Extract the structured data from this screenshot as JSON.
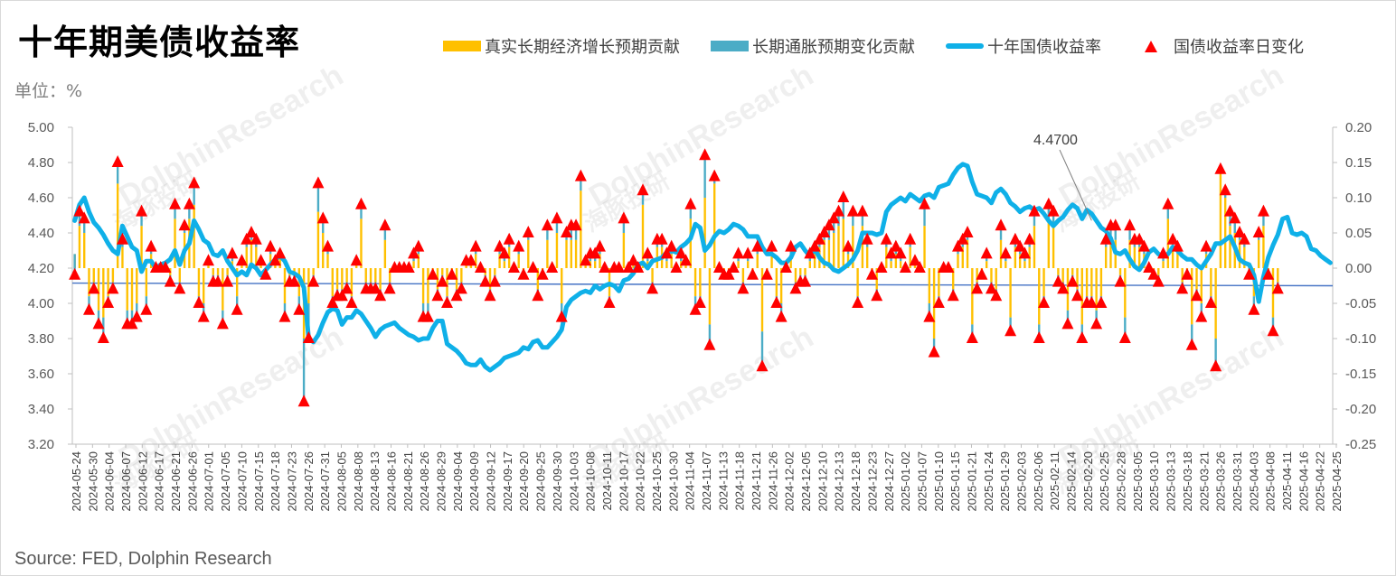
{
  "title": "十年期美债收益率",
  "unit_label": "单位：%",
  "source": "Source: FED, Dolphin Research",
  "legend": [
    {
      "label": "真实长期经济增长预期贡献",
      "kind": "bar",
      "color": "#FFC000"
    },
    {
      "label": "长期通胀预期变化贡献",
      "kind": "bar",
      "color": "#4BACC6"
    },
    {
      "label": "十年国债收益率",
      "kind": "line",
      "color": "#0FB0E8"
    },
    {
      "label": "国债收益率日变化",
      "kind": "triangle",
      "color": "#FF0000"
    }
  ],
  "watermarks": [
    "DolphinResearch",
    "海豚投研"
  ],
  "chart_data": {
    "type": "line",
    "annotation": "4.4700",
    "left_axis": {
      "min": 3.2,
      "max": 5.0,
      "ticks": [
        "3.20",
        "3.40",
        "3.60",
        "3.80",
        "4.00",
        "4.20",
        "4.40",
        "4.60",
        "4.80",
        "5.00"
      ]
    },
    "right_axis": {
      "min": -0.25,
      "max": 0.2,
      "ticks": [
        "-0.25",
        "-0.20",
        "-0.15",
        "-0.10",
        "-0.05",
        "0.00",
        "0.05",
        "0.10",
        "0.15",
        "0.20"
      ]
    },
    "x_tick_labels": [
      "2024-05-24",
      "2024-05-30",
      "2024-06-04",
      "2024-06-07",
      "2024-06-12",
      "2024-06-17",
      "2024-06-21",
      "2024-06-26",
      "2024-07-01",
      "2024-07-05",
      "2024-07-10",
      "2024-07-15",
      "2024-07-18",
      "2024-07-23",
      "2024-07-26",
      "2024-07-31",
      "2024-08-05",
      "2024-08-08",
      "2024-08-13",
      "2024-08-16",
      "2024-08-21",
      "2024-08-26",
      "2024-08-29",
      "2024-09-04",
      "2024-09-09",
      "2024-09-12",
      "2024-09-17",
      "2024-09-20",
      "2024-09-25",
      "2024-09-30",
      "2024-10-03",
      "2024-10-08",
      "2024-10-11",
      "2024-10-17",
      "2024-10-22",
      "2024-10-25",
      "2024-10-30",
      "2024-11-04",
      "2024-11-07",
      "2024-11-13",
      "2024-11-18",
      "2024-11-21",
      "2024-11-26",
      "2024-12-02",
      "2024-12-05",
      "2024-12-10",
      "2024-12-13",
      "2024-12-18",
      "2024-12-23",
      "2024-12-27",
      "2025-01-02",
      "2025-01-07",
      "2025-01-10",
      "2025-01-15",
      "2025-01-21",
      "2025-01-24",
      "2025-01-29",
      "2025-02-03",
      "2025-02-06",
      "2025-02-11",
      "2025-02-14",
      "2025-02-20",
      "2025-02-25",
      "2025-02-28",
      "2025-03-05",
      "2025-03-10",
      "2025-03-13",
      "2025-03-18",
      "2025-03-21",
      "2025-03-26",
      "2025-03-31",
      "2025-04-03",
      "2025-04-08",
      "2025-04-11",
      "2025-04-16",
      "2025-04-22",
      "2025-04-25"
    ],
    "series": [
      {
        "name": "十年国债收益率",
        "axis": "left",
        "values": [
          4.47,
          4.56,
          4.6,
          4.52,
          4.46,
          4.43,
          4.39,
          4.34,
          4.3,
          4.28,
          4.44,
          4.38,
          4.32,
          4.3,
          4.18,
          4.24,
          4.24,
          4.2,
          4.22,
          4.23,
          4.25,
          4.3,
          4.22,
          4.3,
          4.34,
          4.47,
          4.42,
          4.36,
          4.34,
          4.28,
          4.27,
          4.3,
          4.24,
          4.2,
          4.16,
          4.18,
          4.16,
          4.22,
          4.2,
          4.16,
          4.19,
          4.22,
          4.25,
          4.27,
          4.24,
          4.18,
          4.17,
          4.15,
          4.09,
          3.8,
          3.78,
          3.82,
          3.89,
          3.95,
          3.97,
          3.96,
          3.88,
          3.92,
          3.92,
          3.96,
          3.94,
          3.9,
          3.86,
          3.81,
          3.85,
          3.87,
          3.88,
          3.89,
          3.86,
          3.84,
          3.82,
          3.81,
          3.79,
          3.8,
          3.8,
          3.86,
          3.9,
          3.9,
          3.77,
          3.75,
          3.73,
          3.7,
          3.66,
          3.65,
          3.65,
          3.68,
          3.64,
          3.62,
          3.64,
          3.66,
          3.69,
          3.7,
          3.71,
          3.72,
          3.75,
          3.74,
          3.78,
          3.79,
          3.75,
          3.75,
          3.78,
          3.81,
          3.85,
          3.98,
          4.02,
          4.04,
          4.06,
          4.07,
          4.06,
          4.1,
          4.08,
          4.1,
          4.11,
          4.1,
          4.07,
          4.13,
          4.14,
          4.17,
          4.22,
          4.23,
          4.2,
          4.24,
          4.25,
          4.26,
          4.29,
          4.3,
          4.29,
          4.32,
          4.34,
          4.37,
          4.45,
          4.43,
          4.3,
          4.33,
          4.38,
          4.41,
          4.4,
          4.42,
          4.45,
          4.44,
          4.42,
          4.38,
          4.38,
          4.38,
          4.32,
          4.28,
          4.28,
          4.26,
          4.23,
          4.23,
          4.26,
          4.32,
          4.34,
          4.3,
          4.27,
          4.31,
          4.26,
          4.23,
          4.22,
          4.19,
          4.18,
          4.2,
          4.22,
          4.25,
          4.3,
          4.4,
          4.4,
          4.4,
          4.39,
          4.4,
          4.52,
          4.56,
          4.58,
          4.6,
          4.58,
          4.62,
          4.6,
          4.58,
          4.61,
          4.62,
          4.6,
          4.66,
          4.67,
          4.68,
          4.73,
          4.77,
          4.79,
          4.78,
          4.69,
          4.62,
          4.61,
          4.6,
          4.57,
          4.63,
          4.65,
          4.62,
          4.57,
          4.55,
          4.52,
          4.54,
          4.55,
          4.53,
          4.54,
          4.51,
          4.47,
          4.44,
          4.47,
          4.49,
          4.53,
          4.56,
          4.54,
          4.48,
          4.53,
          4.51,
          4.47,
          4.43,
          4.41,
          4.37,
          4.29,
          4.28,
          4.3,
          4.25,
          4.21,
          4.19,
          4.23,
          4.29,
          4.31,
          4.28,
          4.27,
          4.28,
          4.32,
          4.3,
          4.27,
          4.25,
          4.25,
          4.22,
          4.2,
          4.24,
          4.28,
          4.34,
          4.34,
          4.36,
          4.38,
          4.32,
          4.25,
          4.23,
          4.22,
          4.16,
          4.01,
          4.15,
          4.26,
          4.33,
          4.39,
          4.48,
          4.49,
          4.4,
          4.39,
          4.4,
          4.38,
          4.31,
          4.3,
          4.27,
          4.25,
          4.23
        ]
      },
      {
        "name": "国债收益率日变化",
        "axis": "right",
        "values": [
          -0.01,
          0.08,
          0.07,
          -0.06,
          -0.03,
          -0.08,
          -0.1,
          -0.05,
          -0.03,
          0.15,
          0.04,
          -0.08,
          -0.08,
          -0.07,
          0.08,
          -0.06,
          0.03,
          0.0,
          0.0,
          0.0,
          -0.02,
          0.09,
          -0.03,
          0.06,
          0.09,
          0.12,
          -0.05,
          -0.07,
          0.01,
          -0.02,
          -0.02,
          -0.08,
          -0.02,
          0.02,
          -0.06,
          0.01,
          0.04,
          0.05,
          0.04,
          0.01,
          -0.01,
          0.03,
          0.01,
          0.02,
          -0.07,
          -0.02,
          -0.02,
          -0.06,
          -0.19,
          -0.1,
          -0.02,
          0.12,
          0.07,
          0.03,
          -0.05,
          -0.04,
          -0.04,
          -0.03,
          -0.05,
          0.01,
          0.09,
          -0.03,
          -0.03,
          -0.03,
          -0.04,
          0.06,
          -0.03,
          0.0,
          0.0,
          0.0,
          0.0,
          0.02,
          0.03,
          -0.07,
          -0.07,
          -0.01,
          -0.04,
          -0.02,
          -0.05,
          -0.01,
          -0.04,
          -0.03,
          0.01,
          0.01,
          0.03,
          0.0,
          -0.02,
          -0.04,
          -0.02,
          0.03,
          0.02,
          0.04,
          0.0,
          0.03,
          -0.01,
          0.05,
          0.0,
          -0.04,
          -0.01,
          0.06,
          0.0,
          0.07,
          -0.07,
          0.05,
          0.06,
          0.06,
          0.13,
          0.01,
          0.02,
          0.02,
          0.03,
          0.0,
          -0.05,
          0.0,
          0.0,
          0.07,
          0.0,
          0.01,
          0.0,
          0.11,
          0.02,
          -0.03,
          0.04,
          0.04,
          0.02,
          0.03,
          0.0,
          0.02,
          0.01,
          0.09,
          -0.06,
          -0.05,
          0.16,
          -0.11,
          0.13,
          0.0,
          -0.01,
          -0.01,
          0.0,
          0.02,
          -0.03,
          0.02,
          -0.01,
          0.03,
          -0.14,
          -0.01,
          0.03,
          -0.05,
          -0.07,
          0.0,
          0.03,
          -0.03,
          -0.02,
          -0.02,
          0.02,
          0.03,
          0.04,
          0.05,
          0.06,
          0.07,
          0.08,
          0.1,
          0.03,
          0.08,
          -0.05,
          0.08,
          0.04,
          -0.01,
          -0.04,
          0.0,
          0.04,
          0.02,
          0.03,
          0.02,
          0.0,
          0.04,
          0.01,
          0.0,
          0.09,
          -0.07,
          -0.12,
          -0.05,
          0.0,
          0.0,
          -0.04,
          0.03,
          0.04,
          0.05,
          -0.1,
          -0.03,
          -0.01,
          0.02,
          -0.03,
          -0.04,
          0.06,
          0.02,
          -0.09,
          0.04,
          0.03,
          0.02,
          0.04,
          0.08,
          -0.1,
          -0.05,
          0.09,
          0.08,
          -0.02,
          -0.03,
          -0.08,
          -0.02,
          -0.04,
          -0.1,
          -0.05,
          -0.05,
          -0.08,
          -0.05,
          0.04,
          0.06,
          0.06,
          -0.02,
          -0.1,
          0.06,
          0.04,
          0.04,
          0.03,
          0.0,
          -0.01,
          -0.02,
          0.02,
          0.09,
          0.04,
          0.03,
          -0.03,
          -0.01,
          -0.11,
          -0.04,
          -0.07,
          0.03,
          -0.05,
          -0.14,
          0.14,
          0.11,
          0.08,
          0.07,
          0.05,
          0.04,
          -0.01,
          -0.06,
          0.05,
          0.08,
          -0.01,
          -0.09,
          -0.03
        ]
      },
      {
        "name": "真实长期经济增长预期贡献",
        "axis": "right",
        "values": [
          0.02,
          0.06,
          0.05,
          -0.04,
          -0.02,
          -0.06,
          -0.07,
          -0.04,
          -0.02,
          0.12,
          0.03,
          -0.06,
          -0.06,
          -0.05,
          0.06,
          -0.04,
          0.02,
          0.0,
          0.0,
          0.0,
          -0.01,
          0.07,
          -0.02,
          0.05,
          0.07,
          0.09,
          -0.04,
          -0.05,
          0.01,
          -0.01,
          -0.01,
          -0.06,
          -0.01,
          0.01,
          -0.04,
          0.01,
          0.03,
          0.04,
          0.03,
          0.01,
          -0.01,
          0.02,
          0.01,
          0.02,
          -0.05,
          -0.01,
          -0.01,
          -0.04,
          -0.1,
          -0.05,
          -0.01,
          0.08,
          0.05,
          0.02,
          -0.04,
          -0.03,
          -0.03,
          -0.02,
          -0.04,
          0.01,
          0.07,
          -0.02,
          -0.02,
          -0.02,
          -0.03,
          0.04,
          -0.02,
          0.0,
          0.0,
          0.0,
          0.0,
          0.01,
          0.02,
          -0.05,
          -0.05,
          -0.01,
          -0.03,
          -0.01,
          -0.04,
          -0.01,
          -0.03,
          -0.02,
          0.01,
          0.01,
          0.02,
          0.0,
          -0.01,
          -0.03,
          -0.01,
          0.02,
          0.01,
          0.03,
          0.0,
          0.02,
          -0.01,
          0.04,
          0.0,
          -0.03,
          -0.01,
          0.04,
          0.0,
          0.05,
          -0.05,
          0.04,
          0.04,
          0.04,
          0.11,
          0.01,
          0.01,
          0.01,
          0.02,
          0.0,
          -0.04,
          0.0,
          0.0,
          0.05,
          0.0,
          0.01,
          0.0,
          0.09,
          0.01,
          -0.02,
          0.03,
          0.03,
          0.01,
          0.02,
          0.0,
          0.01,
          0.01,
          0.07,
          -0.04,
          -0.04,
          0.1,
          -0.08,
          0.12,
          0.0,
          -0.01,
          -0.01,
          0.0,
          0.01,
          -0.02,
          0.01,
          -0.01,
          0.02,
          -0.09,
          -0.01,
          0.02,
          -0.04,
          -0.05,
          0.0,
          0.02,
          -0.02,
          -0.01,
          -0.01,
          0.01,
          0.02,
          0.03,
          0.04,
          0.04,
          0.05,
          0.06,
          0.07,
          0.02,
          0.06,
          -0.04,
          0.06,
          0.03,
          -0.01,
          -0.03,
          0.0,
          0.03,
          0.01,
          0.02,
          0.01,
          0.0,
          0.03,
          0.01,
          0.0,
          0.06,
          -0.05,
          -0.1,
          -0.04,
          0.0,
          0.0,
          -0.03,
          0.02,
          0.03,
          0.04,
          -0.08,
          -0.02,
          -0.01,
          0.01,
          -0.02,
          -0.03,
          0.04,
          0.01,
          -0.07,
          0.03,
          0.02,
          0.01,
          0.03,
          0.06,
          -0.08,
          -0.04,
          0.07,
          0.06,
          -0.01,
          -0.02,
          -0.06,
          -0.01,
          -0.03,
          -0.08,
          -0.04,
          -0.04,
          -0.06,
          -0.04,
          0.03,
          0.04,
          0.04,
          -0.01,
          -0.07,
          0.04,
          0.03,
          0.03,
          0.02,
          0.0,
          -0.01,
          -0.01,
          0.01,
          0.07,
          0.03,
          0.02,
          -0.02,
          -0.01,
          -0.08,
          -0.03,
          -0.05,
          0.02,
          -0.04,
          -0.1,
          0.14,
          0.1,
          0.06,
          0.05,
          0.04,
          0.03,
          -0.01,
          -0.04,
          0.04,
          0.06,
          -0.01,
          -0.07,
          -0.02
        ]
      },
      {
        "name": "长期通胀预期变化贡献",
        "axis": "right",
        "values": [
          -0.03,
          0.02,
          0.02,
          -0.02,
          -0.01,
          -0.02,
          -0.03,
          -0.01,
          -0.01,
          0.03,
          0.01,
          -0.02,
          -0.02,
          -0.02,
          0.02,
          -0.02,
          0.01,
          0.0,
          0.0,
          0.0,
          -0.01,
          0.02,
          -0.01,
          0.01,
          0.02,
          0.03,
          -0.01,
          -0.02,
          0.0,
          -0.01,
          -0.01,
          -0.02,
          -0.01,
          0.01,
          -0.02,
          0.0,
          0.01,
          0.01,
          0.01,
          0.0,
          0.0,
          0.01,
          0.0,
          0.0,
          -0.02,
          -0.01,
          -0.01,
          -0.02,
          -0.09,
          -0.05,
          -0.01,
          0.04,
          0.02,
          0.01,
          -0.01,
          -0.01,
          -0.01,
          -0.01,
          -0.01,
          0.0,
          0.02,
          -0.01,
          -0.01,
          -0.01,
          -0.01,
          0.02,
          -0.01,
          0.0,
          0.0,
          0.0,
          0.0,
          0.01,
          0.01,
          -0.02,
          -0.02,
          0.0,
          -0.01,
          -0.01,
          -0.01,
          0.0,
          -0.01,
          -0.01,
          0.0,
          0.0,
          0.01,
          0.0,
          -0.01,
          -0.01,
          -0.01,
          0.01,
          0.01,
          0.01,
          0.0,
          0.01,
          0.0,
          0.01,
          0.0,
          -0.01,
          0.0,
          0.02,
          0.0,
          0.02,
          -0.02,
          0.01,
          0.02,
          0.02,
          0.02,
          0.0,
          0.01,
          0.01,
          0.01,
          0.0,
          -0.01,
          0.0,
          0.0,
          0.02,
          0.0,
          0.0,
          0.0,
          0.02,
          0.01,
          -0.01,
          0.01,
          0.01,
          0.01,
          0.01,
          0.0,
          0.01,
          0.0,
          0.02,
          -0.02,
          -0.01,
          0.06,
          -0.03,
          0.01,
          0.0,
          0.0,
          0.0,
          0.0,
          0.01,
          -0.01,
          0.01,
          0.0,
          0.01,
          -0.05,
          0.0,
          0.01,
          -0.01,
          -0.02,
          0.0,
          0.01,
          -0.01,
          -0.01,
          -0.01,
          0.01,
          0.01,
          0.01,
          0.01,
          0.02,
          0.02,
          0.02,
          0.03,
          0.01,
          0.02,
          -0.01,
          0.02,
          0.01,
          0.0,
          -0.01,
          0.0,
          0.01,
          0.01,
          0.01,
          0.01,
          0.0,
          0.01,
          0.0,
          0.0,
          0.03,
          -0.02,
          -0.02,
          -0.01,
          0.0,
          0.0,
          -0.01,
          0.01,
          0.01,
          0.01,
          -0.02,
          -0.01,
          0.0,
          0.01,
          -0.01,
          -0.01,
          0.02,
          0.01,
          -0.02,
          0.01,
          0.01,
          0.01,
          0.01,
          0.02,
          -0.02,
          -0.01,
          0.02,
          0.02,
          -0.01,
          -0.01,
          -0.02,
          -0.01,
          -0.01,
          -0.02,
          -0.01,
          -0.01,
          -0.02,
          -0.01,
          0.01,
          0.02,
          0.02,
          -0.01,
          -0.03,
          0.02,
          0.01,
          0.01,
          0.01,
          0.0,
          0.0,
          -0.01,
          0.01,
          0.02,
          0.01,
          0.01,
          -0.01,
          0.0,
          -0.03,
          -0.01,
          -0.02,
          0.01,
          -0.01,
          -0.04,
          0.0,
          0.01,
          0.02,
          0.02,
          0.01,
          0.01,
          0.0,
          -0.02,
          0.01,
          0.02,
          0.0,
          -0.02,
          -0.01
        ]
      }
    ]
  }
}
